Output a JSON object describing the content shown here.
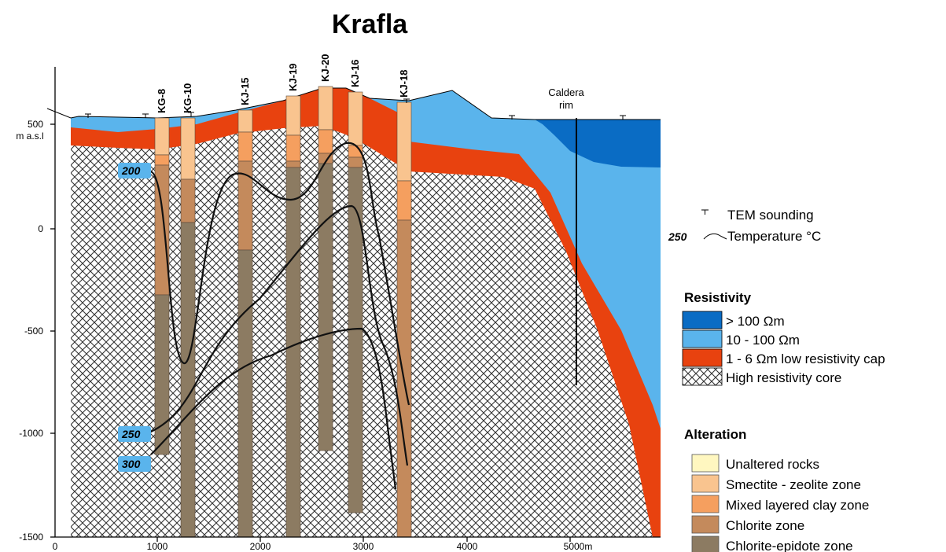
{
  "title": "Krafla",
  "y_axis": {
    "unit": "m a.s.l",
    "ticks": [
      "500",
      "0",
      "-500",
      "-1000",
      "-1500"
    ]
  },
  "x_axis": {
    "ticks": [
      "0",
      "1000",
      "2000",
      "3000",
      "4000",
      "5000m"
    ]
  },
  "wells": [
    "KG-8",
    "KG-10",
    "KJ-15",
    "KJ-19",
    "KJ-20",
    "KJ-16",
    "KJ-18"
  ],
  "caldera_rim": [
    "Caldera",
    "rim"
  ],
  "isotherms": [
    "200",
    "250",
    "300"
  ],
  "legend": {
    "tem_sounding": "TEM sounding",
    "temperature": {
      "sample": "250",
      "label": "Temperature °C"
    },
    "resistivity": {
      "title": "Resistivity",
      "items": [
        "> 100 Ωm",
        "10 - 100 Ωm",
        "1 - 6 Ωm low resistivity cap",
        "High resistivity core"
      ]
    },
    "alteration": {
      "title": "Alteration",
      "items": [
        "Unaltered rocks",
        "Smectite - zeolite zone",
        "Mixed layered clay zone",
        "Chlorite zone",
        "Chlorite-epidote zone"
      ]
    }
  }
}
